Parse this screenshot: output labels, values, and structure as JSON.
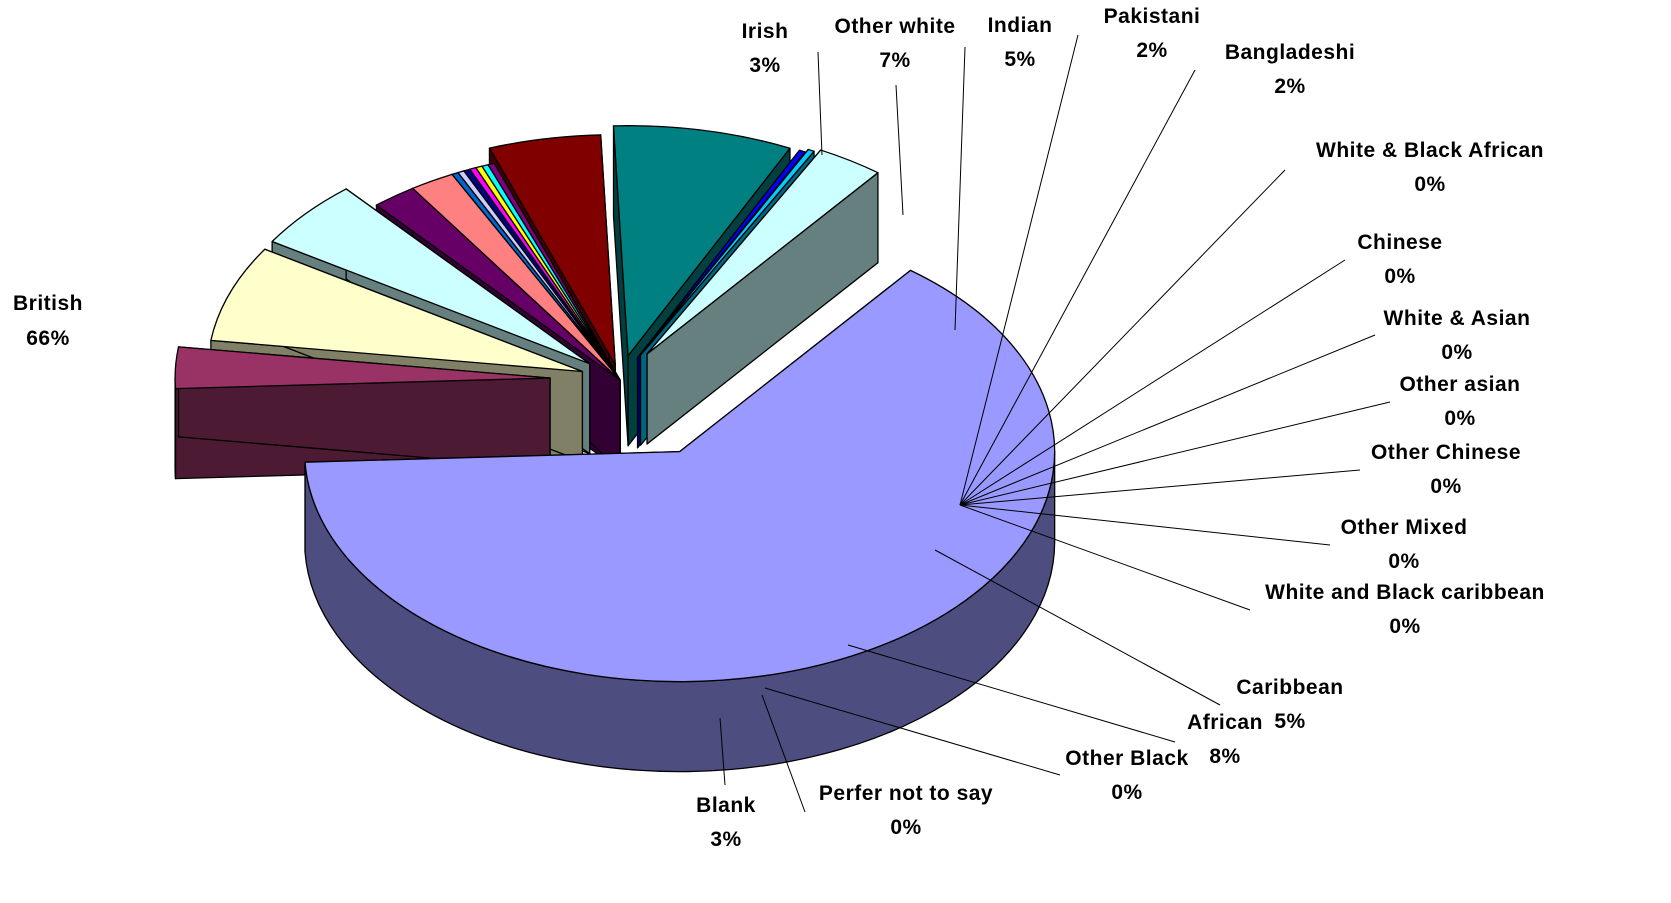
{
  "chart_data": {
    "type": "pie",
    "title": "",
    "slices": [
      {
        "label": "British",
        "pct_label": "66%",
        "value": 66,
        "color": "#9999ff",
        "side": "#4d4d80"
      },
      {
        "label": "Irish",
        "pct_label": "3%",
        "value": 3,
        "color": "#993366",
        "side": "#4d1a33"
      },
      {
        "label": "Other white",
        "pct_label": "7%",
        "value": 7,
        "color": "#ffffcc",
        "side": "#808066"
      },
      {
        "label": "Indian",
        "pct_label": "5%",
        "value": 5,
        "color": "#ccffff",
        "side": "#668080"
      },
      {
        "label": "Pakistani",
        "pct_label": "2%",
        "value": 2,
        "color": "#660066",
        "side": "#330033"
      },
      {
        "label": "Bangladeshi",
        "pct_label": "2%",
        "value": 2,
        "color": "#ff8080",
        "side": "#804040"
      },
      {
        "label": "White & Black African",
        "pct_label": "0%",
        "value": 0,
        "color": "#0066cc",
        "side": "#003366"
      },
      {
        "label": "Chinese",
        "pct_label": "0%",
        "value": 0,
        "color": "#ccccff",
        "side": "#666680"
      },
      {
        "label": "White & Asian",
        "pct_label": "0%",
        "value": 0,
        "color": "#000080",
        "side": "#000040"
      },
      {
        "label": "Other asian",
        "pct_label": "0%",
        "value": 0,
        "color": "#ff00ff",
        "side": "#800080"
      },
      {
        "label": "Other Chinese",
        "pct_label": "0%",
        "value": 0,
        "color": "#ffff00",
        "side": "#808000"
      },
      {
        "label": "Other Mixed",
        "pct_label": "0%",
        "value": 0,
        "color": "#00ffff",
        "side": "#008080"
      },
      {
        "label": "White and Black caribbean",
        "pct_label": "0%",
        "value": 0,
        "color": "#800080",
        "side": "#400040"
      },
      {
        "label": "Caribbean",
        "pct_label": "5%",
        "value": 5,
        "color": "#800000",
        "side": "#400000"
      },
      {
        "label": "African",
        "pct_label": "8%",
        "value": 8,
        "color": "#008080",
        "side": "#004040"
      },
      {
        "label": "Other Black",
        "pct_label": "0%",
        "value": 0,
        "color": "#0000ff",
        "side": "#000080"
      },
      {
        "label": "Perfer not to say",
        "pct_label": "0%",
        "value": 0,
        "color": "#00ccff",
        "side": "#006680"
      },
      {
        "label": "Blank",
        "pct_label": "3%",
        "value": 3,
        "color": "#ccffff",
        "side": "#668080"
      }
    ]
  }
}
